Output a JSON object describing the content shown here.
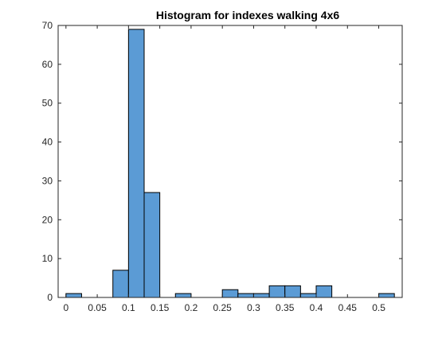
{
  "chart_data": {
    "type": "bar",
    "title": "Histogram for indexes walking 4x6",
    "xlabel": "",
    "ylabel": "",
    "bin_width": 0.025,
    "xlim": [
      -0.0125,
      0.5375
    ],
    "ylim": [
      0,
      70
    ],
    "x_ticks": [
      0,
      0.05,
      0.1,
      0.15,
      0.2,
      0.25,
      0.3,
      0.35,
      0.4,
      0.45,
      0.5
    ],
    "x_tick_labels": [
      "0",
      "0.05",
      "0.1",
      "0.15",
      "0.2",
      "0.25",
      "0.3",
      "0.35",
      "0.4",
      "0.45",
      "0.5"
    ],
    "y_ticks": [
      0,
      10,
      20,
      30,
      40,
      50,
      60,
      70
    ],
    "y_tick_labels": [
      "0",
      "10",
      "20",
      "30",
      "40",
      "50",
      "60",
      "70"
    ],
    "bins": [
      {
        "x": 0.0125,
        "value": 1
      },
      {
        "x": 0.0875,
        "value": 7
      },
      {
        "x": 0.1125,
        "value": 69
      },
      {
        "x": 0.1375,
        "value": 27
      },
      {
        "x": 0.1875,
        "value": 1
      },
      {
        "x": 0.2625,
        "value": 2
      },
      {
        "x": 0.2875,
        "value": 1
      },
      {
        "x": 0.3125,
        "value": 1
      },
      {
        "x": 0.3375,
        "value": 3
      },
      {
        "x": 0.3625,
        "value": 3
      },
      {
        "x": 0.3875,
        "value": 1
      },
      {
        "x": 0.4125,
        "value": 3
      },
      {
        "x": 0.5125,
        "value": 1
      }
    ],
    "grid": false,
    "box": true,
    "colors": {
      "bar_fill": "#5b9bd5",
      "bar_edge": "#000000",
      "axis": "#262626"
    }
  }
}
